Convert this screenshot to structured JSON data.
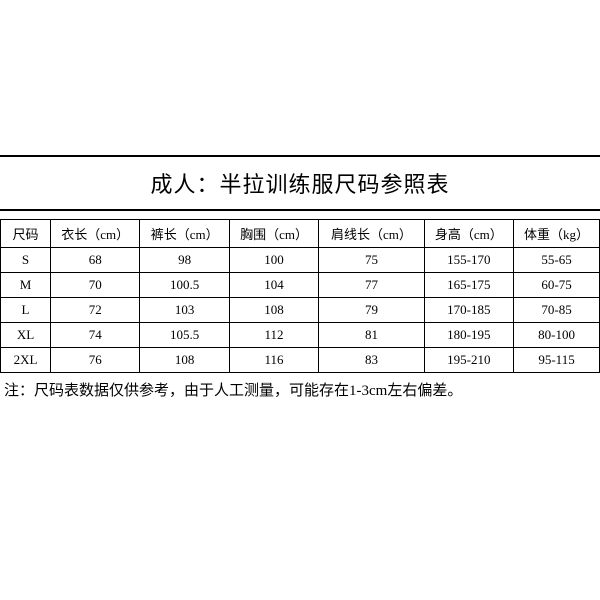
{
  "title": "成人：半拉训练服尺码参照表",
  "table": {
    "columns": [
      "尺码",
      "衣长（cm）",
      "裤长（cm）",
      "胸围（cm）",
      "肩线长（cm）",
      "身高（cm）",
      "体重（kg）"
    ],
    "rows": [
      [
        "S",
        "68",
        "98",
        "100",
        "75",
        "155-170",
        "55-65"
      ],
      [
        "M",
        "70",
        "100.5",
        "104",
        "77",
        "165-175",
        "60-75"
      ],
      [
        "L",
        "72",
        "103",
        "108",
        "79",
        "170-185",
        "70-85"
      ],
      [
        "XL",
        "74",
        "105.5",
        "112",
        "81",
        "180-195",
        "80-100"
      ],
      [
        "2XL",
        "76",
        "108",
        "116",
        "83",
        "195-210",
        "95-115"
      ]
    ]
  },
  "footnote": "注：尺码表数据仅供参考，由于人工测量，可能存在1-3cm左右偏差。",
  "style": {
    "background_color": "#ffffff",
    "border_color": "#000000",
    "text_color": "#000000",
    "title_fontsize": 22,
    "cell_fontsize": 13,
    "footnote_fontsize": 15,
    "font_family": "SimSun"
  }
}
